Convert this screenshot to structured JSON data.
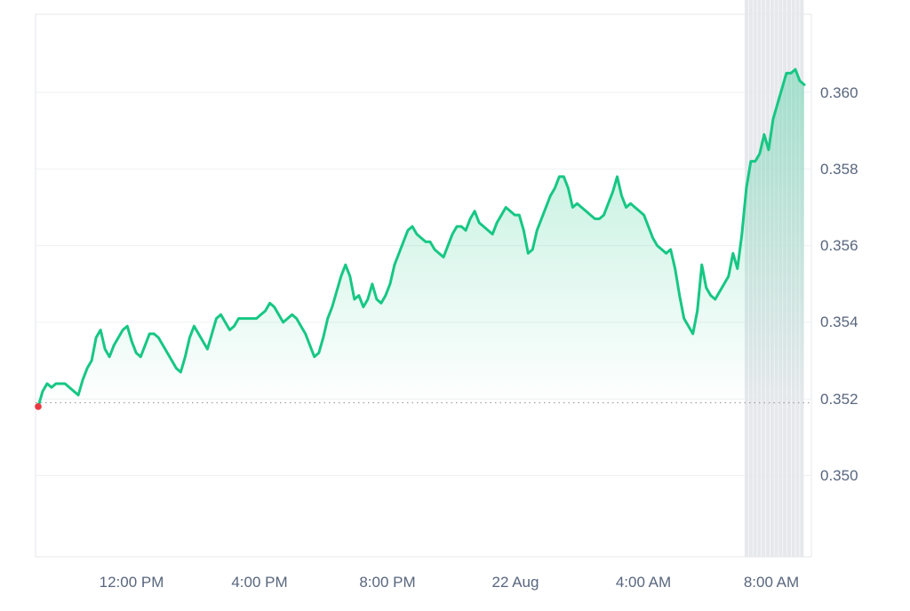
{
  "chart_data": {
    "type": "area",
    "title": "",
    "xlabel": "",
    "ylabel": "",
    "x_ticks": [
      "12:00 PM",
      "4:00 PM",
      "8:00 PM",
      "22 Aug",
      "4:00 AM",
      "8:00 AM"
    ],
    "y_ticks": [
      "0.360",
      "0.358",
      "0.356",
      "0.354",
      "0.352",
      "0.350"
    ],
    "ylim": [
      0.35,
      0.362
    ],
    "baseline": 0.3519,
    "grid": true,
    "y_axis_position": "right",
    "line_color": "#16c784",
    "fill_color": "#16c784",
    "start_marker_color": "#ea3943",
    "volume_bar_color": "#e6e8ec",
    "series": [
      {
        "values": [
          0.3518,
          0.3522,
          0.3524,
          0.3523,
          0.3524,
          0.3524,
          0.3524,
          0.3523,
          0.3522,
          0.3521,
          0.3525,
          0.3528,
          0.353,
          0.3536,
          0.3538,
          0.3533,
          0.3531,
          0.3534,
          0.3536,
          0.3538,
          0.3539,
          0.3535,
          0.3532,
          0.3531,
          0.3534,
          0.3537,
          0.3537,
          0.3536,
          0.3534,
          0.3532,
          0.353,
          0.3528,
          0.3527,
          0.3531,
          0.3536,
          0.3539,
          0.3537,
          0.3535,
          0.3533,
          0.3537,
          0.3541,
          0.3542,
          0.354,
          0.3538,
          0.3539,
          0.3541,
          0.3541,
          0.3541,
          0.3541,
          0.3541,
          0.3542,
          0.3543,
          0.3545,
          0.3544,
          0.3542,
          0.354,
          0.3541,
          0.3542,
          0.3541,
          0.3539,
          0.3537,
          0.3534,
          0.3531,
          0.3532,
          0.3536,
          0.3541,
          0.3544,
          0.3548,
          0.3552,
          0.3555,
          0.3552,
          0.3546,
          0.3547,
          0.3544,
          0.3546,
          0.355,
          0.3546,
          0.3545,
          0.3547,
          0.355,
          0.3555,
          0.3558,
          0.3561,
          0.3564,
          0.3565,
          0.3563,
          0.3562,
          0.3561,
          0.3561,
          0.3559,
          0.3558,
          0.3557,
          0.356,
          0.3563,
          0.3565,
          0.3565,
          0.3564,
          0.3567,
          0.3569,
          0.3566,
          0.3565,
          0.3564,
          0.3563,
          0.3566,
          0.3568,
          0.357,
          0.3569,
          0.3568,
          0.3568,
          0.3564,
          0.3558,
          0.3559,
          0.3564,
          0.3567,
          0.357,
          0.3573,
          0.3575,
          0.3578,
          0.3578,
          0.3575,
          0.357,
          0.3571,
          0.357,
          0.3569,
          0.3568,
          0.3567,
          0.3567,
          0.3568,
          0.3571,
          0.3574,
          0.3578,
          0.3573,
          0.357,
          0.3571,
          0.357,
          0.3569,
          0.3568,
          0.3565,
          0.3562,
          0.356,
          0.3559,
          0.3558,
          0.3559,
          0.3554,
          0.3547,
          0.3541,
          0.3539,
          0.3537,
          0.3543,
          0.3555,
          0.3549,
          0.3547,
          0.3546,
          0.3548,
          0.355,
          0.3552,
          0.3558,
          0.3554,
          0.3563,
          0.3575,
          0.3582,
          0.3582,
          0.3584,
          0.3589,
          0.3585,
          0.3593,
          0.3597,
          0.3601,
          0.3605,
          0.3605,
          0.3606,
          0.3603,
          0.3602
        ]
      }
    ],
    "volume": {
      "levels": [
        0.345,
        0.345,
        0.344,
        0.344,
        0.344,
        0.344,
        0.343,
        0.344,
        0.344,
        0.343,
        0.343,
        0.342,
        0.342,
        0.343,
        0.343,
        0.343,
        0.343,
        0.343,
        0.343,
        0.343,
        0.343,
        0.342,
        0.341,
        0.341,
        0.341,
        0.341,
        0.34,
        0.34,
        0.34,
        0.34,
        0.34,
        0.34,
        0.34,
        0.34,
        0.34,
        0.34,
        0.339,
        0.339,
        0.339,
        0.339,
        0.339,
        0.339,
        0.339,
        0.339,
        0.339,
        0.339,
        0.339,
        0.339,
        0.339,
        0.339,
        0.339,
        0.339,
        0.339,
        0.339,
        0.339,
        0.339,
        0.339,
        0.339,
        0.339,
        0.339,
        0.339,
        0.339,
        0.339,
        0.339,
        0.339,
        0.339,
        0.339,
        0.339,
        0.339,
        0.339,
        0.339,
        0.339,
        0.339,
        0.339,
        0.339,
        0.339,
        0.339,
        0.339,
        0.339,
        0.339,
        0.339,
        0.34,
        0.34,
        0.34,
        0.34,
        0.34,
        0.339,
        0.339,
        0.339,
        0.339,
        0.339,
        0.339,
        0.339,
        0.339,
        0.339,
        0.339,
        0.339,
        0.339,
        0.339,
        0.338,
        0.338,
        0.337,
        0.337,
        0.337,
        0.336,
        0.336,
        0.336,
        0.336,
        0.335,
        0.335,
        0.335,
        0.334,
        0.333,
        0.333,
        0.333,
        0.332,
        0.332,
        0.332,
        0.332,
        0.331,
        0.331,
        0.331,
        0.331,
        0.33,
        0.33,
        0.33,
        0.329,
        0.329,
        0.329,
        0.329,
        0.329,
        0.329,
        0.329,
        0.329,
        0.329,
        0.329,
        0.328,
        0.328,
        0.328,
        0.328,
        0.328,
        0.328,
        0.328,
        0.328,
        0.328,
        0.329,
        0.329,
        0.329,
        0.33,
        0.33,
        0.33,
        0.33,
        0.33,
        0.33,
        0.33,
        0.33,
        0.33,
        0.33,
        0.33,
        0.33,
        0.331,
        0.331,
        0.331,
        0.332,
        0.332,
        0.332,
        0.37,
        0.39,
        0.41,
        0.42,
        0.43,
        0.433,
        0.435,
        0.435,
        0.436,
        0.436,
        0.436,
        0.436,
        0.436,
        0.436
      ]
    }
  }
}
